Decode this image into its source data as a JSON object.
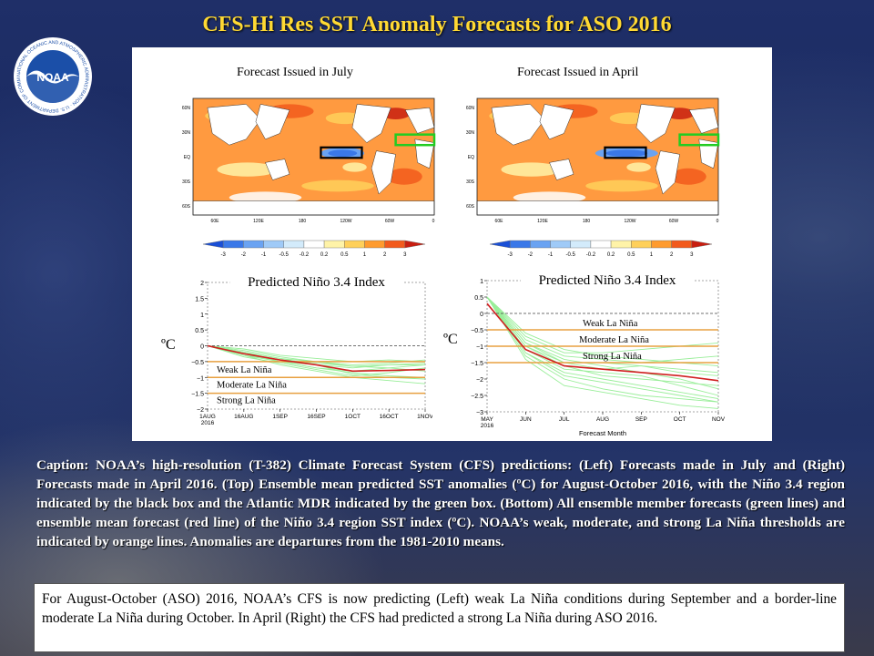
{
  "slide": {
    "title": "CFS-Hi Res SST Anomaly Forecasts for ASO 2016",
    "logo_text": "NOAA",
    "logo_ring_text": "NATIONAL OCEANIC AND ATMOSPHERIC ADMINISTRATION · U.S. DEPARTMENT OF COMMERCE"
  },
  "maps": [
    {
      "title": "Forecast Issued in  July",
      "lat_labels": [
        "60N",
        "30N",
        "EQ",
        "30S",
        "60S"
      ],
      "lon_labels": [
        "60E",
        "120E",
        "180",
        "120W",
        "60W",
        "0"
      ],
      "nino34_box_color": "#000000",
      "mdr_box_color": "#22cc22"
    },
    {
      "title": "Forecast Issued in April",
      "lat_labels": [
        "60N",
        "30N",
        "EQ",
        "30S",
        "60S"
      ],
      "lon_labels": [
        "60E",
        "120E",
        "180",
        "120W",
        "60W",
        "0"
      ],
      "nino34_box_color": "#000000",
      "mdr_box_color": "#22cc22"
    }
  ],
  "colorbar": {
    "ticks": [
      "-3",
      "-2",
      "-1",
      "-0.5",
      "-0.2",
      "0.2",
      "0.5",
      "1",
      "2",
      "3"
    ],
    "colors": [
      "#1a4fd6",
      "#3a78e8",
      "#6aa3f2",
      "#9fcaf7",
      "#d3ebfb",
      "#ffffff",
      "#fff3a8",
      "#ffd05a",
      "#ff9b2e",
      "#f25a1c",
      "#c81e10"
    ]
  },
  "chart_data": [
    {
      "type": "line",
      "title": "Predicted Niño 3.4 Index",
      "ylabel": "ºC",
      "xlabel": "",
      "x_tick_labels": [
        "1AUG\n2016",
        "16AUG",
        "1SEP",
        "16SEP",
        "1OCT",
        "16OCT",
        "1NOV"
      ],
      "x": [
        0,
        1,
        2,
        3,
        4,
        5,
        6
      ],
      "ylim": [
        -2,
        2
      ],
      "y_ticks": [
        -2,
        -1.5,
        -1,
        -0.5,
        0,
        0.5,
        1,
        1.5,
        2
      ],
      "y_tick_labels": [
        "−2",
        "−1.5",
        "−1",
        "−0.5",
        "0",
        "0.5",
        "1",
        "1.5",
        "2"
      ],
      "zero_line": true,
      "thresholds": [
        {
          "label": "Weak La Niña",
          "value": -0.5,
          "color": "#e8a040"
        },
        {
          "label": "Moderate La Niña",
          "value": -1.0,
          "color": "#e8a040"
        },
        {
          "label": "Strong La Niña",
          "value": -1.5,
          "color": "#e8a040"
        }
      ],
      "ensemble_mean": {
        "color": "#d02020",
        "values": [
          0.0,
          -0.25,
          -0.45,
          -0.6,
          -0.8,
          -0.78,
          -0.75
        ]
      },
      "members": {
        "color": "#99ee99",
        "series": [
          [
            0.0,
            -0.3,
            -0.5,
            -0.6,
            -0.7,
            -0.6,
            -0.6
          ],
          [
            0.0,
            -0.2,
            -0.4,
            -0.6,
            -0.9,
            -1.0,
            -1.05
          ],
          [
            0.0,
            -0.3,
            -0.6,
            -0.8,
            -1.0,
            -1.1,
            -1.2
          ],
          [
            0.0,
            -0.1,
            -0.3,
            -0.4,
            -0.5,
            -0.45,
            -0.5
          ],
          [
            0.0,
            -0.2,
            -0.5,
            -0.7,
            -0.8,
            -0.7,
            -0.6
          ],
          [
            0.0,
            -0.35,
            -0.55,
            -0.75,
            -0.95,
            -0.85,
            -0.7
          ],
          [
            0.0,
            -0.15,
            -0.35,
            -0.5,
            -0.65,
            -0.6,
            -0.55
          ],
          [
            0.0,
            -0.25,
            -0.5,
            -0.7,
            -0.85,
            -0.95,
            -1.0
          ],
          [
            0.0,
            -0.3,
            -0.45,
            -0.55,
            -0.65,
            -0.7,
            -0.8
          ],
          [
            0.0,
            -0.2,
            -0.4,
            -0.5,
            -0.6,
            -0.55,
            -0.45
          ]
        ]
      }
    },
    {
      "type": "line",
      "title": "Predicted Niño 3.4 Index",
      "ylabel": "ºC",
      "xlabel": "Forecast Month",
      "x_tick_labels": [
        "MAY\n2016",
        "JUN",
        "JUL",
        "AUG",
        "SEP",
        "OCT",
        "NOV"
      ],
      "x": [
        0,
        1,
        2,
        3,
        4,
        5,
        6
      ],
      "ylim": [
        -3,
        1
      ],
      "y_ticks": [
        -3,
        -2.5,
        -2,
        -1.5,
        -1,
        -0.5,
        0,
        0.5,
        1
      ],
      "y_tick_labels": [
        "−3",
        "−2.5",
        "−2",
        "−1.5",
        "−1",
        "−0.5",
        "0",
        "0.5",
        "1"
      ],
      "zero_line": true,
      "thresholds": [
        {
          "label": "Weak La Niña",
          "value": -0.5,
          "color": "#e8a040"
        },
        {
          "label": "Moderate La Niña",
          "value": -1.0,
          "color": "#e8a040"
        },
        {
          "label": "Strong La Niña",
          "value": -1.5,
          "color": "#e8a040"
        }
      ],
      "ensemble_mean": {
        "color": "#d02020",
        "values": [
          0.3,
          -1.1,
          -1.6,
          -1.7,
          -1.8,
          -1.9,
          -2.05
        ]
      },
      "members": {
        "color": "#99ee99",
        "series": [
          [
            0.5,
            -0.6,
            -1.1,
            -1.3,
            -1.4,
            -1.5,
            -1.6
          ],
          [
            0.5,
            -0.9,
            -1.4,
            -1.6,
            -1.8,
            -2.0,
            -2.3
          ],
          [
            0.5,
            -1.2,
            -1.8,
            -2.0,
            -2.2,
            -2.4,
            -2.6
          ],
          [
            0.5,
            -0.8,
            -1.3,
            -1.4,
            -1.5,
            -1.4,
            -1.3
          ],
          [
            0.5,
            -1.0,
            -1.6,
            -1.9,
            -2.0,
            -2.1,
            -2.2
          ],
          [
            0.5,
            -1.3,
            -2.0,
            -2.3,
            -2.5,
            -2.6,
            -2.7
          ],
          [
            0.5,
            -0.7,
            -1.2,
            -1.2,
            -1.1,
            -1.0,
            -0.9
          ],
          [
            0.5,
            -1.1,
            -1.7,
            -1.8,
            -1.9,
            -2.2,
            -2.5
          ],
          [
            0.5,
            -1.0,
            -1.5,
            -1.7,
            -1.6,
            -1.8,
            -1.9
          ],
          [
            0.5,
            -1.4,
            -2.2,
            -2.4,
            -2.6,
            -2.8,
            -2.9
          ],
          [
            0.5,
            -0.9,
            -1.5,
            -1.5,
            -1.6,
            -1.7,
            -1.8
          ],
          [
            0.5,
            -1.2,
            -1.9,
            -2.1,
            -2.3,
            -2.5,
            -2.7
          ]
        ]
      }
    }
  ],
  "caption": "Caption: NOAA’s high-resolution (T-382) Climate Forecast System (CFS) predictions: (Left) Forecasts made in July and (Right) Forecasts made in April 2016. (Top) Ensemble mean predicted SST anomalies (ºC) for August-October 2016, with the Niño 3.4 region indicated by the black box and the Atlantic MDR indicated by the green box. (Bottom) All ensemble member forecasts (green lines) and ensemble mean forecast (red line) of the Niño 3.4 region SST index (ºC). NOAA’s weak, moderate, and strong La Niña thresholds are indicated by orange lines. Anomalies are departures from the 1981-2010 means.",
  "summary": "For August-October (ASO) 2016, NOAA’s CFS is now predicting (Left) weak La Niña conditions during September and a border-line moderate La Niña during October. In April (Right) the CFS had predicted a strong La Niña during ASO 2016."
}
